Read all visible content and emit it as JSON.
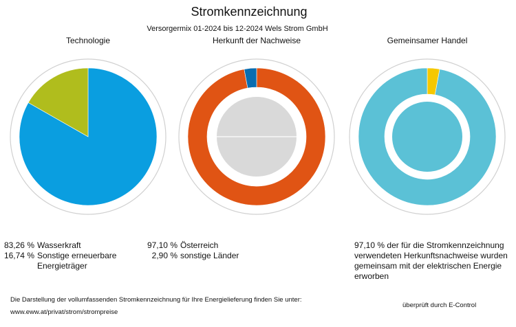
{
  "title": "Stromkennzeichnung",
  "subtitle": "Versorgermix 01-2024 bis 12-2024 Wels Strom GmbH",
  "chart_data": [
    {
      "type": "pie",
      "title": "Technologie",
      "categories": [
        "Wasserkraft",
        "Sonstige erneuerbare Energieträger"
      ],
      "values": [
        83.26,
        16.74
      ],
      "value_labels": [
        "83,26 %",
        "16,74 %"
      ],
      "colors": [
        "#0a9ee0",
        "#b0bd1d"
      ]
    },
    {
      "type": "donut",
      "title": "Herkunft der Nachweise",
      "categories": [
        "Österreich",
        "sonstige Länder"
      ],
      "values": [
        97.1,
        2.9
      ],
      "value_labels": [
        "97,10 %",
        "2,90 %"
      ],
      "colors": [
        "#e05414",
        "#0a6db0"
      ]
    },
    {
      "type": "donut",
      "title": "Gemeinsamer Handel",
      "categories": [
        null,
        "der für die Stromkennzeichnung verwendeten Herkunftsnachweise wurden gemeinsam mit der elektrischen Energie erworben"
      ],
      "values": [
        2.9,
        97.1
      ],
      "value_labels": [
        null,
        "97,10 %"
      ],
      "colors": [
        "#f5c800",
        "#5bc1d6"
      ]
    }
  ],
  "footer": {
    "text": "Die Darstellung der vollumfassenden Stromkennzeichnung für Ihre Energielieferung finden Sie unter:",
    "link": "www.eww.at/privat/strom/strompreise",
    "verified": "überprüft durch E-Control"
  }
}
